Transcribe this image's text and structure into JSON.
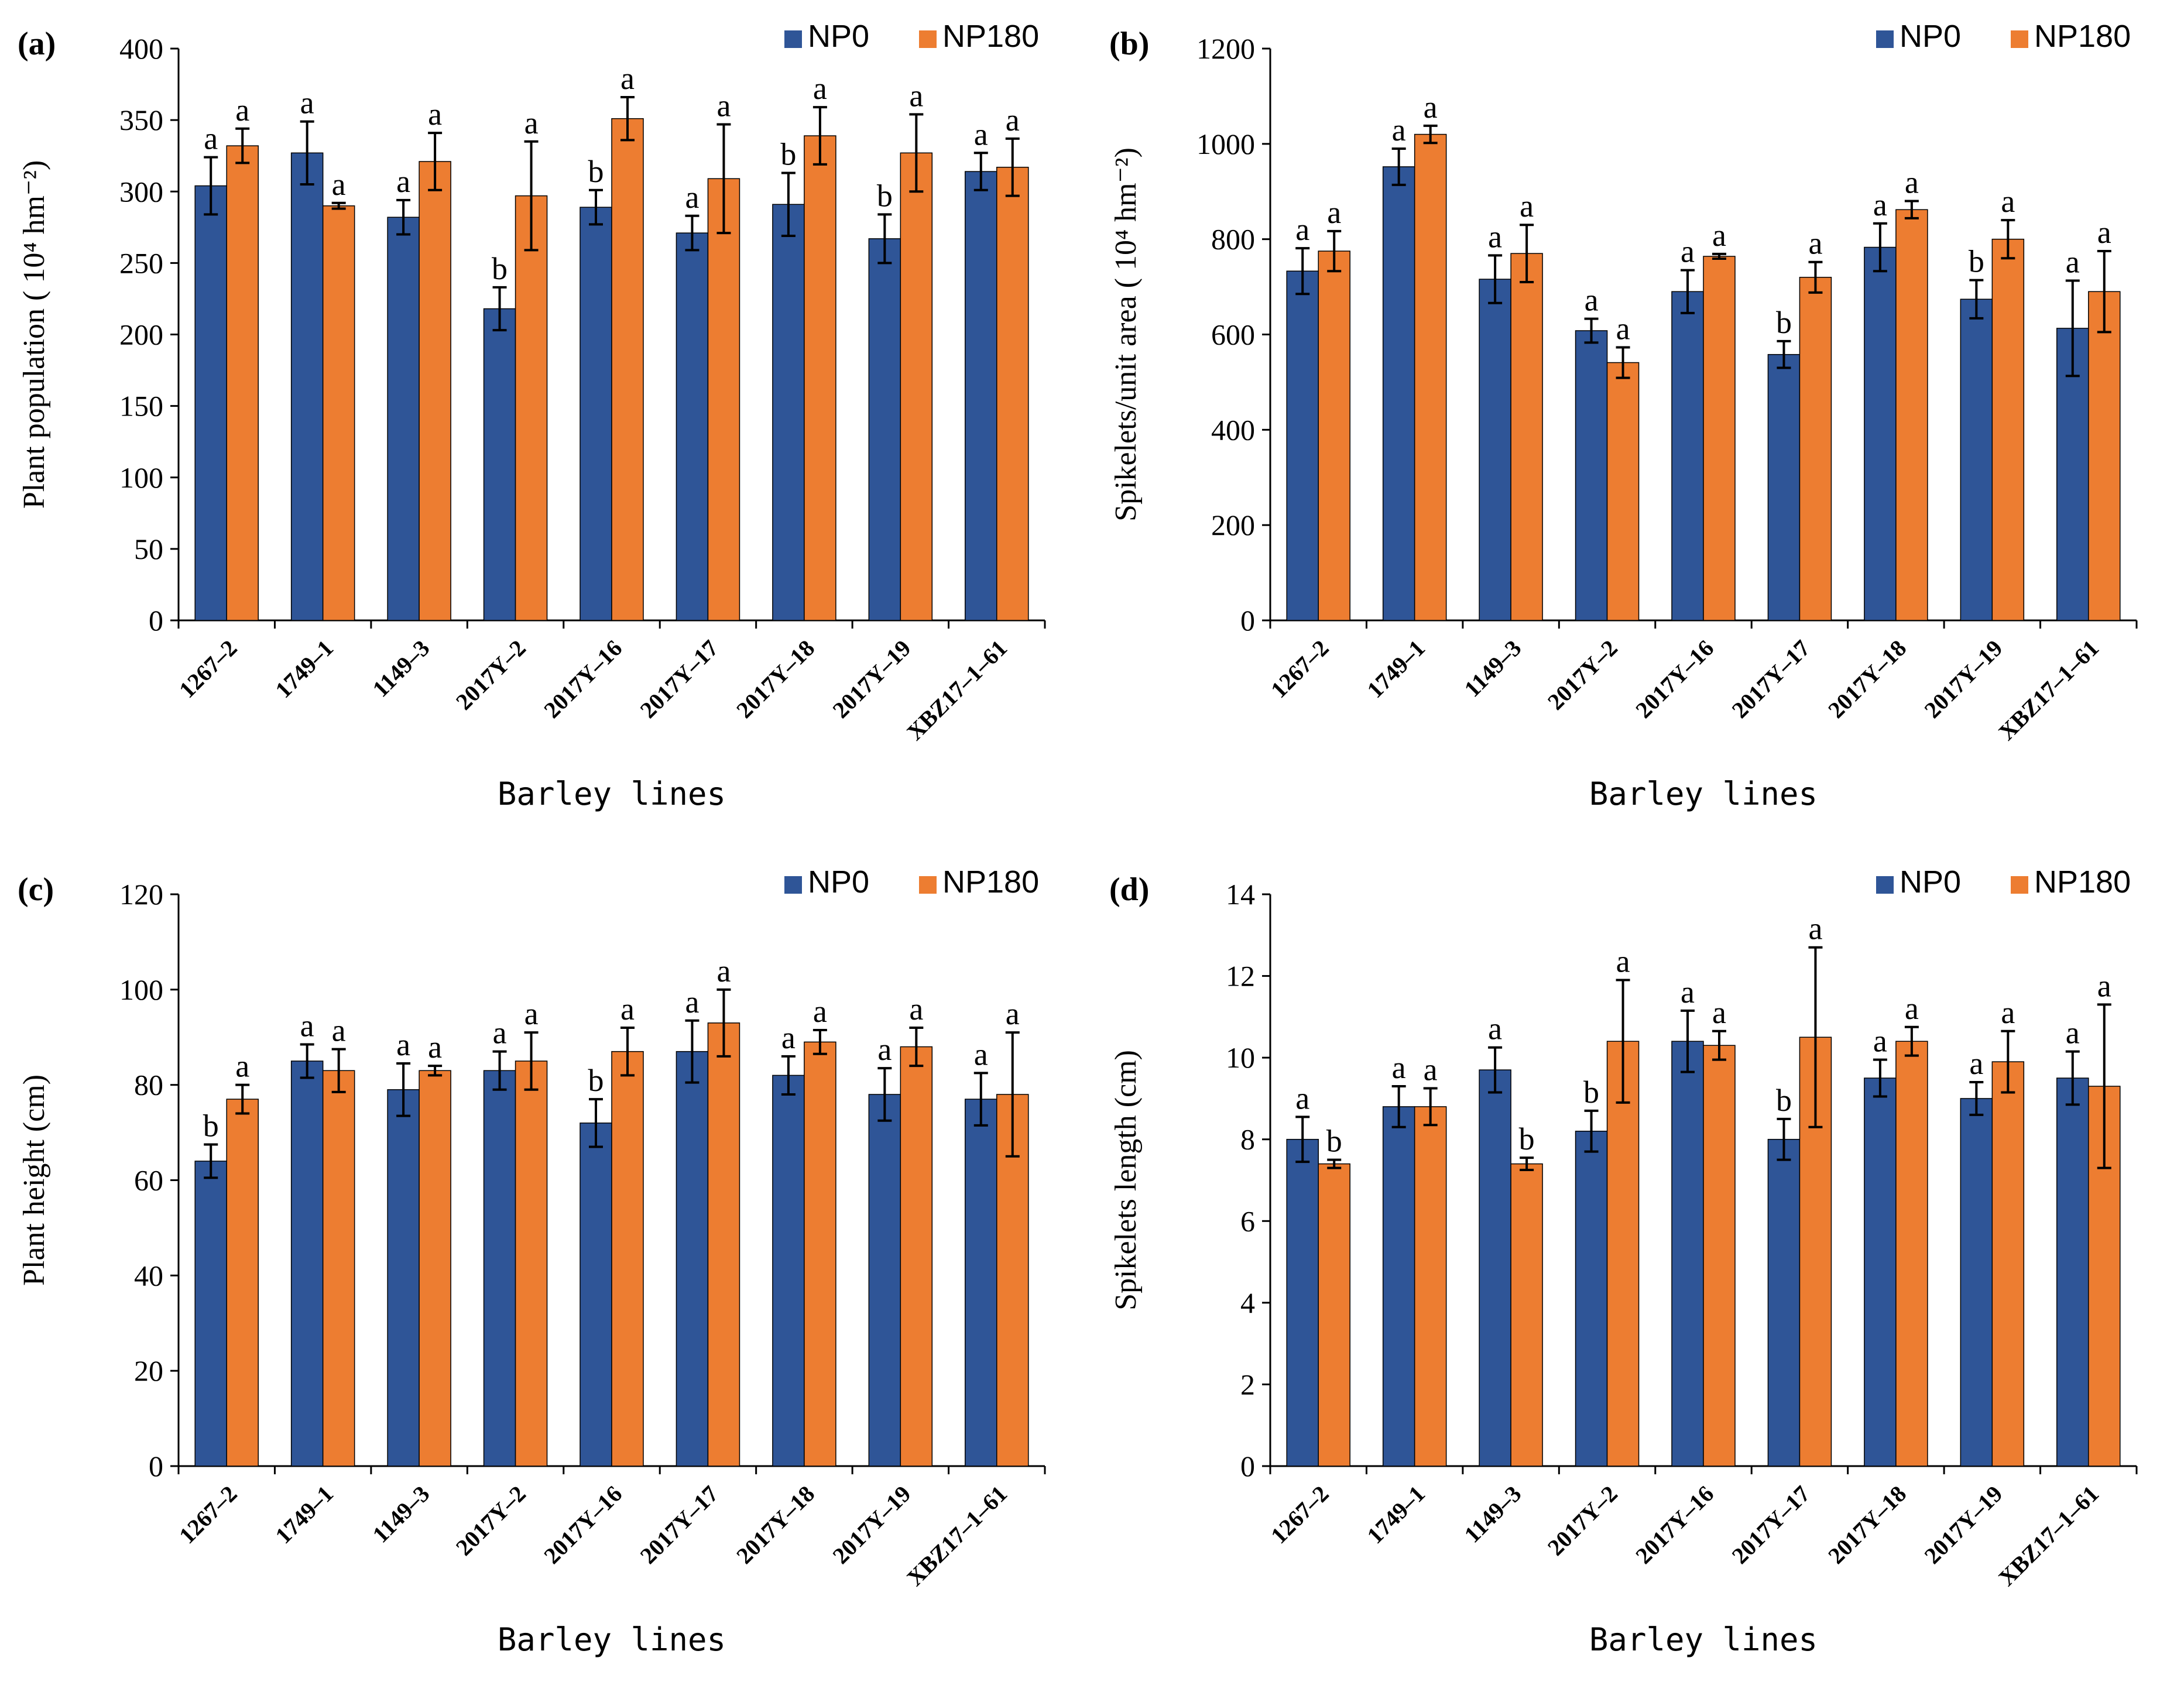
{
  "figure": {
    "colors": {
      "NP0": "#2F5597",
      "NP180": "#ED7D31",
      "axis": "#000000"
    },
    "xlabel": "Barley lines",
    "legend": [
      "NP0",
      "NP180"
    ]
  },
  "chart_data": [
    {
      "panel": "(a)",
      "type": "bar",
      "title": "",
      "ylabel": "Plant population ( 10⁴ hm⁻²)",
      "xlabel": "Barley lines",
      "ylim": [
        0,
        400
      ],
      "yticks": [
        0,
        50,
        100,
        150,
        200,
        250,
        300,
        350,
        400
      ],
      "legend_position": "top-right",
      "categories": [
        "1267–2",
        "1749–1",
        "1149–3",
        "2017Y–2",
        "2017Y–16",
        "2017Y–17",
        "2017Y–18",
        "2017Y–19",
        "XBZ17–1–61"
      ],
      "series": [
        {
          "name": "NP0",
          "values": [
            304,
            327,
            282,
            218,
            289,
            271,
            291,
            267,
            314
          ],
          "errors": [
            20,
            22,
            12,
            15,
            12,
            12,
            22,
            17,
            13
          ],
          "letters": [
            "a",
            "a",
            "a",
            "b",
            "b",
            "a",
            "b",
            "b",
            "a"
          ]
        },
        {
          "name": "NP180",
          "values": [
            332,
            290,
            321,
            297,
            351,
            309,
            339,
            327,
            317
          ],
          "errors": [
            12,
            2,
            20,
            38,
            15,
            38,
            20,
            27,
            20
          ],
          "letters": [
            "a",
            "a",
            "a",
            "a",
            "a",
            "a",
            "a",
            "a",
            "a"
          ]
        }
      ]
    },
    {
      "panel": "(b)",
      "type": "bar",
      "title": "",
      "ylabel": "Spikelets/unit area ( 10⁴ hm⁻²)",
      "xlabel": "Barley lines",
      "ylim": [
        0,
        1200
      ],
      "yticks": [
        0,
        200,
        400,
        600,
        800,
        1000,
        1200
      ],
      "legend_position": "top-right",
      "categories": [
        "1267–2",
        "1749–1",
        "1149–3",
        "2017Y–2",
        "2017Y–16",
        "2017Y–17",
        "2017Y–18",
        "2017Y–19",
        "XBZ17–1–61"
      ],
      "series": [
        {
          "name": "NP0",
          "values": [
            733,
            952,
            716,
            608,
            690,
            558,
            783,
            674,
            613
          ],
          "errors": [
            48,
            38,
            50,
            25,
            45,
            28,
            50,
            40,
            100
          ],
          "letters": [
            "a",
            "a",
            "a",
            "a",
            "a",
            "b",
            "a",
            "b",
            "a"
          ]
        },
        {
          "name": "NP180",
          "values": [
            775,
            1020,
            770,
            541,
            764,
            720,
            862,
            800,
            690
          ],
          "errors": [
            42,
            18,
            60,
            32,
            5,
            32,
            18,
            40,
            85
          ],
          "letters": [
            "a",
            "a",
            "a",
            "a",
            "a",
            "a",
            "a",
            "a",
            "a"
          ]
        }
      ]
    },
    {
      "panel": "(c)",
      "type": "bar",
      "title": "",
      "ylabel": "Plant height (cm)",
      "xlabel": "Barley lines",
      "ylim": [
        0,
        120
      ],
      "yticks": [
        0,
        20,
        40,
        60,
        80,
        100,
        120
      ],
      "legend_position": "top-right",
      "categories": [
        "1267–2",
        "1749–1",
        "1149–3",
        "2017Y–2",
        "2017Y–16",
        "2017Y–17",
        "2017Y–18",
        "2017Y–19",
        "XBZ17–1–61"
      ],
      "series": [
        {
          "name": "NP0",
          "values": [
            64,
            85,
            79,
            83,
            72,
            87,
            82,
            78,
            77
          ],
          "errors": [
            3.5,
            3.5,
            5.5,
            4,
            5,
            6.5,
            4,
            5.5,
            5.5
          ],
          "letters": [
            "b",
            "a",
            "a",
            "a",
            "b",
            "a",
            "a",
            "a",
            "a"
          ]
        },
        {
          "name": "NP180",
          "values": [
            77,
            83,
            83,
            85,
            87,
            93,
            89,
            88,
            78
          ],
          "errors": [
            3,
            4.5,
            1,
            6,
            5,
            7,
            2.5,
            4,
            13
          ],
          "letters": [
            "a",
            "a",
            "a",
            "a",
            "a",
            "a",
            "a",
            "a",
            "a"
          ]
        }
      ]
    },
    {
      "panel": "(d)",
      "type": "bar",
      "title": "",
      "ylabel": "Spikelets length (cm)",
      "xlabel": "Barley lines",
      "ylim": [
        0,
        14
      ],
      "yticks": [
        0,
        2,
        4,
        6,
        8,
        10,
        12,
        14
      ],
      "legend_position": "top-right",
      "categories": [
        "1267–2",
        "1749–1",
        "1149–3",
        "2017Y–2",
        "2017Y–16",
        "2017Y–17",
        "2017Y–18",
        "2017Y–19",
        "XBZ17–1–61"
      ],
      "series": [
        {
          "name": "NP0",
          "values": [
            8.0,
            8.8,
            9.7,
            8.2,
            10.4,
            8.0,
            9.5,
            9.0,
            9.5
          ],
          "errors": [
            0.55,
            0.5,
            0.55,
            0.5,
            0.75,
            0.5,
            0.45,
            0.4,
            0.65
          ],
          "letters": [
            "a",
            "a",
            "a",
            "b",
            "a",
            "b",
            "a",
            "a",
            "a"
          ]
        },
        {
          "name": "NP180",
          "values": [
            7.4,
            8.8,
            7.4,
            10.4,
            10.3,
            10.5,
            10.4,
            9.9,
            9.3
          ],
          "errors": [
            0.1,
            0.45,
            0.15,
            1.5,
            0.35,
            2.2,
            0.35,
            0.75,
            2.0
          ],
          "letters": [
            "b",
            "a",
            "b",
            "a",
            "a",
            "a",
            "a",
            "a",
            "a"
          ]
        }
      ]
    }
  ]
}
